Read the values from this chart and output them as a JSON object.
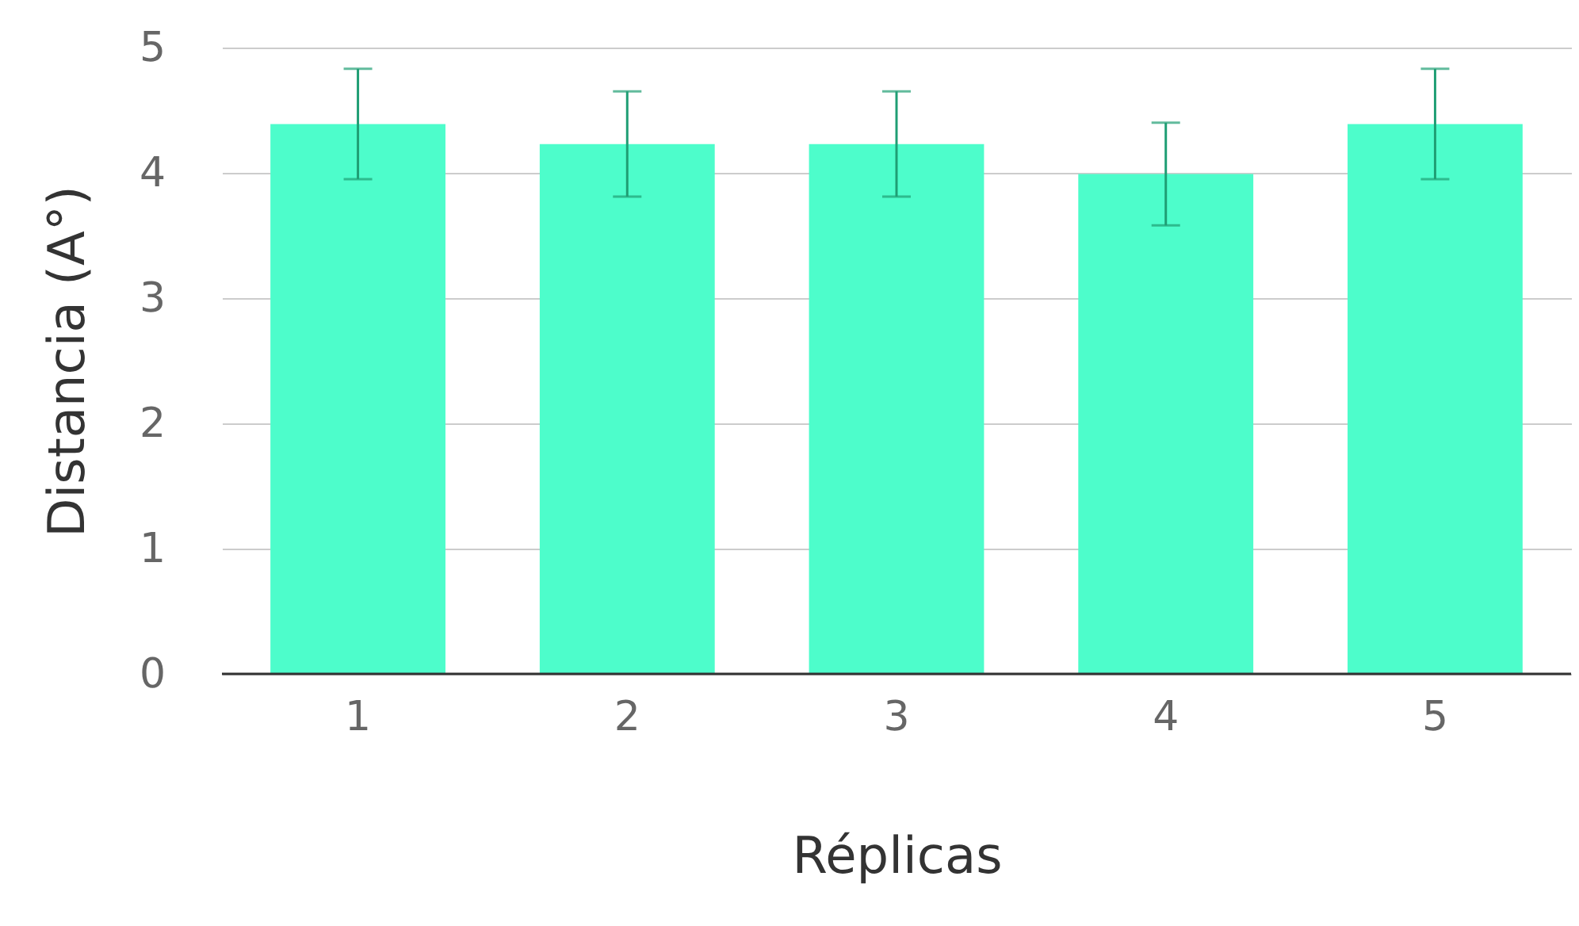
{
  "chart_data": {
    "type": "bar",
    "xlabel": "Réplicas",
    "ylabel": "Distancia (A°)",
    "categories": [
      "1",
      "2",
      "3",
      "4",
      "5"
    ],
    "values": [
      4.39,
      4.23,
      4.23,
      3.99,
      4.39
    ],
    "errors": [
      0.44,
      0.42,
      0.42,
      0.41,
      0.44
    ],
    "color": "#4dfdcb",
    "ylim": [
      0,
      5
    ],
    "yticks": [
      0,
      1,
      2,
      3,
      4,
      5
    ],
    "grid": "y"
  }
}
